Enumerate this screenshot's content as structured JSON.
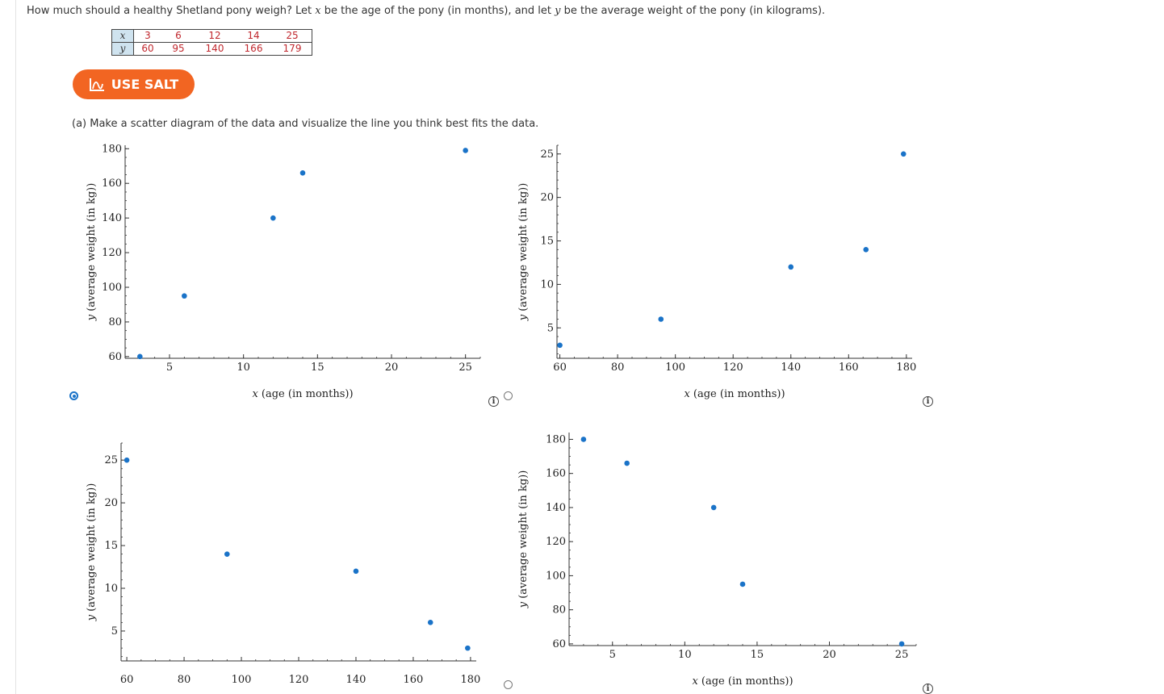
{
  "question": {
    "p1": "How much should a healthy Shetland pony weigh? Let ",
    "x": "x",
    "p2": " be the age of the pony (in months), and let ",
    "y": "y",
    "p3": " be the average weight of the pony (in kilograms)."
  },
  "table": {
    "x_label": "x",
    "y_label": "y",
    "x_values": [
      "3",
      "6",
      "12",
      "14",
      "25"
    ],
    "y_values": [
      "60",
      "95",
      "140",
      "166",
      "179"
    ]
  },
  "salt_button": {
    "label": "USE SALT"
  },
  "part_a": "(a) Make a scatter diagram of the data and visualize the line you think best fits the data.",
  "info_glyph": "i",
  "colors": {
    "point": "#1a73c8",
    "accent": "#f26522",
    "axis": "#333333"
  },
  "options": [
    {
      "selected": true
    },
    {
      "selected": false
    },
    {
      "selected": false
    },
    {
      "selected": false
    }
  ],
  "chart_data": [
    {
      "type": "scatter",
      "title": "",
      "xlabel_var": "x",
      "xlabel": "(age (in months))",
      "ylabel_var": "y",
      "ylabel": "(average weight (in kg))",
      "xlim": [
        2,
        26
      ],
      "ylim": [
        59,
        182
      ],
      "xticks": [
        5,
        10,
        15,
        20,
        25
      ],
      "yticks": [
        60,
        80,
        100,
        120,
        140,
        160,
        180
      ],
      "x": [
        3,
        6,
        12,
        14,
        25
      ],
      "y": [
        60,
        95,
        140,
        166,
        179
      ]
    },
    {
      "type": "scatter",
      "title": "",
      "xlabel_var": "x",
      "xlabel": "(age (in months))",
      "ylabel_var": "y",
      "ylabel": "(average weight (in kg))",
      "xlim": [
        59,
        182
      ],
      "ylim": [
        1.5,
        26
      ],
      "xticks": [
        60,
        80,
        100,
        120,
        140,
        160,
        180
      ],
      "yticks": [
        5,
        10,
        15,
        20,
        25
      ],
      "x": [
        60,
        95,
        140,
        166,
        179
      ],
      "y": [
        3,
        6,
        12,
        14,
        25
      ]
    },
    {
      "type": "scatter",
      "title": "",
      "xlabel_var": "",
      "xlabel": "",
      "ylabel_var": "y",
      "ylabel": "(average weight (in kg))",
      "xlim": [
        58,
        182
      ],
      "ylim": [
        1.5,
        27
      ],
      "xticks": [
        60,
        80,
        100,
        120,
        140,
        160,
        180
      ],
      "yticks": [
        5,
        10,
        15,
        20,
        25
      ],
      "x": [
        60,
        95,
        140,
        166,
        179
      ],
      "y": [
        25,
        14,
        12,
        6,
        3
      ]
    },
    {
      "type": "scatter",
      "title": "",
      "xlabel_var": "x",
      "xlabel": "(age (in months))",
      "ylabel_var": "y",
      "ylabel": "(average weight (in kg))",
      "xlim": [
        2,
        26
      ],
      "ylim": [
        59,
        184
      ],
      "xticks": [
        5,
        10,
        15,
        20,
        25
      ],
      "yticks": [
        60,
        80,
        100,
        120,
        140,
        160,
        180
      ],
      "x": [
        3,
        6,
        12,
        14,
        25
      ],
      "y": [
        180,
        166,
        140,
        95,
        60
      ]
    }
  ]
}
